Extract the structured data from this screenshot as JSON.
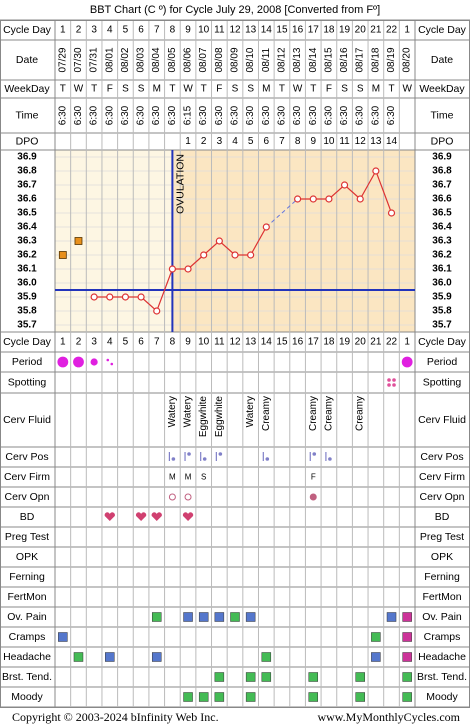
{
  "title": "BBT Chart (C º) for Cycle July 29, 2008  [Converted from Fº]",
  "row_labels": {
    "cycle_day": "Cycle Day",
    "date": "Date",
    "weekday": "WeekDay",
    "time": "Time",
    "dpo": "DPO"
  },
  "cycle_days": [
    1,
    2,
    3,
    4,
    5,
    6,
    7,
    8,
    9,
    10,
    11,
    12,
    13,
    14,
    15,
    16,
    17,
    18,
    19,
    20,
    21,
    22,
    1
  ],
  "dates": [
    "07/29",
    "07/30",
    "07/31",
    "08/01",
    "08/02",
    "08/03",
    "08/04",
    "08/05",
    "08/06",
    "08/07",
    "08/08",
    "08/09",
    "08/10",
    "08/11",
    "08/12",
    "08/13",
    "08/14",
    "08/15",
    "08/16",
    "08/17",
    "08/18",
    "08/19",
    "08/20"
  ],
  "weekdays": [
    "T",
    "W",
    "T",
    "F",
    "S",
    "S",
    "M",
    "T",
    "W",
    "T",
    "F",
    "S",
    "S",
    "M",
    "T",
    "W",
    "T",
    "F",
    "S",
    "S",
    "M",
    "T",
    "W"
  ],
  "times": [
    "6:30",
    "6:30",
    "6:30",
    "6:30",
    "6:30",
    "6:30",
    "6:30",
    "6:30",
    "6:15",
    "6:30",
    "6:30",
    "6:30",
    "6:30",
    "6:30",
    "6:30",
    "6:30",
    "6:30",
    "6:30",
    "6:30",
    "6:30",
    "6:30",
    "6:30",
    null
  ],
  "dpo": [
    null,
    null,
    null,
    null,
    null,
    null,
    null,
    null,
    1,
    2,
    3,
    4,
    5,
    6,
    7,
    8,
    9,
    10,
    11,
    12,
    13,
    14,
    null
  ],
  "chart_data": {
    "type": "line",
    "values": [
      null,
      null,
      35.9,
      35.9,
      35.9,
      35.9,
      35.8,
      36.1,
      36.1,
      36.2,
      36.3,
      36.2,
      36.2,
      36.4,
      null,
      36.6,
      36.6,
      36.6,
      36.7,
      36.6,
      36.8,
      36.5,
      null
    ],
    "discarded": [
      36.2,
      36.3,
      null,
      null,
      null,
      null,
      null,
      null,
      null,
      null,
      null,
      null,
      null,
      null,
      null,
      null,
      null,
      null,
      null,
      null,
      null,
      null,
      null
    ],
    "color": "#dd3333",
    "discarded_color": "#e8901c",
    "ylim": [
      35.65,
      36.95
    ],
    "yticks": [
      36.9,
      36.8,
      36.7,
      36.6,
      36.5,
      36.4,
      36.3,
      36.2,
      36.1,
      {
        "value": 36,
        "label": "36.0"
      },
      35.9,
      35.8,
      35.7
    ],
    "coverline": 35.95,
    "ovulation_day": 8,
    "ovulation_label": "OVULATION",
    "marker_color": "#2233bb",
    "grid": true
  },
  "symptoms": [
    {
      "label": "Period",
      "kind": "circles",
      "color": "#e020e0",
      "marks": [
        3,
        3,
        2,
        1,
        null,
        null,
        null,
        null,
        null,
        null,
        null,
        null,
        null,
        null,
        null,
        null,
        null,
        null,
        null,
        null,
        null,
        null,
        3
      ]
    },
    {
      "label": "Spotting",
      "kind": "spots",
      "color": "#e0509a",
      "marks": [
        null,
        null,
        null,
        null,
        null,
        null,
        null,
        null,
        null,
        null,
        null,
        null,
        null,
        null,
        null,
        null,
        null,
        null,
        null,
        null,
        null,
        1,
        null
      ]
    },
    {
      "label": "Cerv Fluid",
      "kind": "vtext",
      "marks": [
        null,
        null,
        null,
        null,
        null,
        null,
        null,
        "Watery",
        "Watery",
        "Eggwhite",
        "Eggwhite",
        null,
        "Watery",
        "Creamy",
        null,
        null,
        "Creamy",
        "Creamy",
        null,
        "Creamy",
        null,
        null,
        null
      ]
    },
    {
      "label": "Cerv Pos",
      "kind": "pos",
      "color": "#8080c8",
      "marks": [
        null,
        null,
        null,
        null,
        null,
        null,
        null,
        1,
        1,
        1,
        1,
        null,
        null,
        1,
        null,
        null,
        1,
        1,
        null,
        null,
        null,
        null,
        null
      ]
    },
    {
      "label": "Cerv Firm",
      "kind": "text",
      "color": "#a05080",
      "marks": [
        null,
        null,
        null,
        null,
        null,
        null,
        null,
        "M",
        "M",
        "S",
        null,
        null,
        null,
        null,
        null,
        null,
        "F",
        null,
        null,
        null,
        null,
        null,
        null
      ]
    },
    {
      "label": "Cerv Opn",
      "kind": "rings",
      "color": "#c06080",
      "marks": [
        null,
        null,
        null,
        null,
        null,
        null,
        null,
        0,
        0,
        null,
        null,
        null,
        null,
        null,
        null,
        null,
        1,
        null,
        null,
        null,
        null,
        null,
        null
      ]
    },
    {
      "label": "BD",
      "kind": "hearts",
      "color": "#d04070",
      "marks": [
        null,
        null,
        null,
        1,
        null,
        1,
        1,
        null,
        1,
        null,
        null,
        null,
        null,
        null,
        null,
        null,
        null,
        null,
        null,
        null,
        null,
        null,
        null
      ]
    },
    {
      "label": "Preg Test"
    },
    {
      "label": "OPK"
    },
    {
      "label": "Ferning"
    },
    {
      "label": "FertMon"
    },
    {
      "label": "Ov. Pain",
      "kind": "squares",
      "marks": [
        null,
        null,
        null,
        null,
        null,
        null,
        "#44bb55",
        null,
        "#5577cc",
        "#5577cc",
        "#5577cc",
        "#44bb55",
        "#5577cc",
        null,
        null,
        null,
        null,
        null,
        null,
        null,
        null,
        "#5577cc",
        "#cc3399"
      ]
    },
    {
      "label": "Cramps",
      "kind": "squares",
      "marks": [
        "#5577cc",
        null,
        null,
        null,
        null,
        null,
        null,
        null,
        null,
        null,
        null,
        null,
        null,
        null,
        null,
        null,
        null,
        null,
        null,
        null,
        "#44bb55",
        null,
        "#cc3399"
      ]
    },
    {
      "label": "Headache",
      "kind": "squares",
      "marks": [
        null,
        "#44bb55",
        null,
        "#5577cc",
        null,
        null,
        "#5577cc",
        null,
        null,
        null,
        null,
        null,
        null,
        "#44bb55",
        null,
        null,
        null,
        null,
        null,
        null,
        "#5577cc",
        null,
        "#cc3399"
      ]
    },
    {
      "label": "Brst. Tend.",
      "kind": "squares",
      "marks": [
        null,
        null,
        null,
        null,
        null,
        null,
        null,
        null,
        null,
        null,
        "#44bb55",
        null,
        "#44bb55",
        "#44bb55",
        null,
        null,
        "#44bb55",
        null,
        null,
        "#44bb55",
        null,
        null,
        "#44bb55"
      ]
    },
    {
      "label": "Moody",
      "kind": "squares",
      "marks": [
        null,
        null,
        null,
        null,
        null,
        null,
        null,
        null,
        "#44bb55",
        "#44bb55",
        "#44bb55",
        null,
        "#44bb55",
        null,
        null,
        null,
        "#44bb55",
        null,
        null,
        "#44bb55",
        null,
        null,
        "#44bb55"
      ]
    }
  ],
  "footer": {
    "copyright": "Copyright © 2003-2024 bInfinity Web Inc.",
    "site": "www.MyMonthlyCycles.com"
  }
}
